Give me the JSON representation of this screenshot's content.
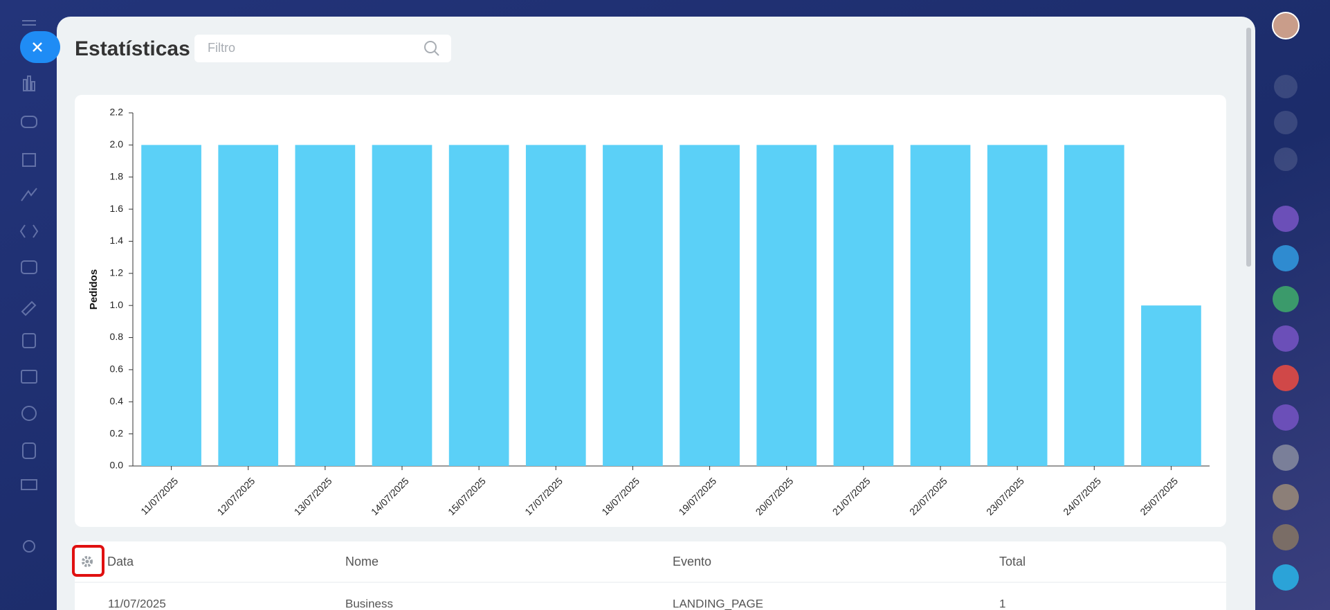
{
  "header": {
    "title": "Estatísticas",
    "filter_placeholder": "Filtro"
  },
  "chart_data": {
    "type": "bar",
    "ylabel": "Pedidos",
    "color": "#5bd0f7",
    "categories": [
      "11/07/2025",
      "12/07/2025",
      "13/07/2025",
      "14/07/2025",
      "15/07/2025",
      "17/07/2025",
      "18/07/2025",
      "19/07/2025",
      "20/07/2025",
      "21/07/2025",
      "22/07/2025",
      "23/07/2025",
      "24/07/2025",
      "25/07/2025"
    ],
    "values": [
      2,
      2,
      2,
      2,
      2,
      2,
      2,
      2,
      2,
      2,
      2,
      2,
      2,
      1
    ],
    "ylim": [
      0,
      2.2
    ],
    "yticks": [
      {
        "value": 0,
        "label": "0.0"
      },
      0.2,
      0.4,
      0.6,
      0.8,
      {
        "value": 1,
        "label": "1.0"
      },
      1.2,
      1.4,
      1.6,
      1.8,
      {
        "value": 2,
        "label": "2.0"
      },
      2.2
    ],
    "grid": false
  },
  "table": {
    "columns": [
      "Data",
      "Nome",
      "Evento",
      "Total"
    ],
    "rows": [
      [
        "11/07/2025",
        "Business",
        "LANDING_PAGE",
        "1"
      ]
    ]
  }
}
